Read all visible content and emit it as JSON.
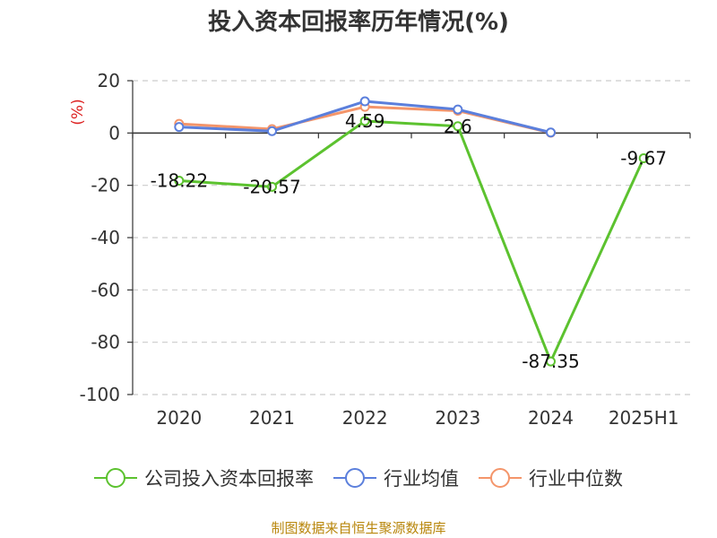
{
  "title": "投入资本回报率历年情况(%)",
  "source": "制图数据来自恒生聚源数据库",
  "legend": [
    {
      "name": "公司投入资本回报率",
      "color": "#5cc22f"
    },
    {
      "name": "行业均值",
      "color": "#5b7fdc"
    },
    {
      "name": "行业中位数",
      "color": "#f4956a"
    }
  ],
  "chart_data": {
    "type": "line",
    "title": "投入资本回报率历年情况(%)",
    "unit_label": "(%)",
    "categories": [
      "2020",
      "2021",
      "2022",
      "2023",
      "2024",
      "2025H1"
    ],
    "ylim": [
      -100,
      20
    ],
    "yticks": [
      "20",
      "0",
      "-20",
      "-40",
      "-60",
      "-80",
      "-100"
    ],
    "grid": true,
    "legend_position": "bottom",
    "series": [
      {
        "name": "公司投入资本回报率",
        "color": "#5cc22f",
        "values": [
          -18.22,
          -20.57,
          4.59,
          2.6,
          -87.35,
          -9.67
        ],
        "labels": [
          "-18.22",
          "-20.57",
          "4.59",
          "2.6",
          "-87.35",
          "-9.67"
        ]
      },
      {
        "name": "行业均值",
        "color": "#5b7fdc",
        "values": [
          2.3,
          0.7,
          12.1,
          9.0,
          0.2,
          null
        ]
      },
      {
        "name": "行业中位数",
        "color": "#f4956a",
        "values": [
          3.5,
          1.5,
          10.0,
          8.5,
          0.1,
          null
        ]
      }
    ]
  }
}
